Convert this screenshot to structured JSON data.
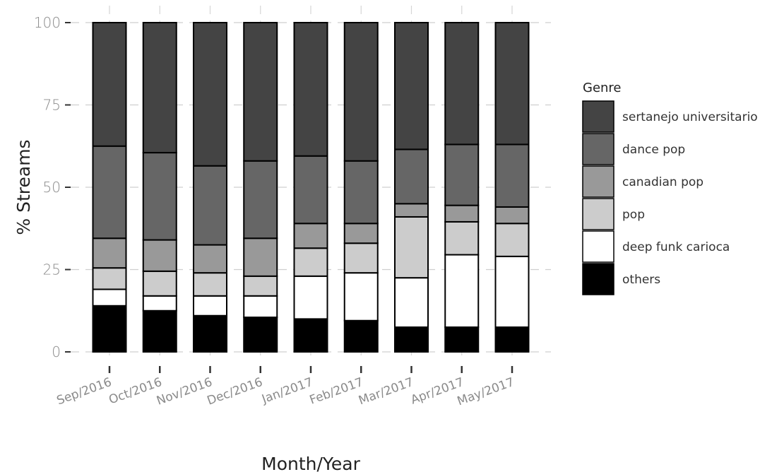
{
  "chart_data": {
    "type": "bar",
    "stacked": true,
    "categories": [
      "Sep/2016",
      "Oct/2016",
      "Nov/2016",
      "Dec/2016",
      "Jan/2017",
      "Feb/2017",
      "Mar/2017",
      "Apr/2017",
      "May/2017"
    ],
    "xlabel": "Month/Year",
    "ylabel": "% Streams",
    "ylim": [
      0,
      100
    ],
    "yticks": [
      0,
      25,
      50,
      75,
      100
    ],
    "grid": true,
    "legend_title": "Genre",
    "legend_position": "right",
    "series": [
      {
        "name": "others",
        "color": "#000000",
        "values": [
          14,
          12.5,
          11,
          10.5,
          10,
          9.5,
          7.5,
          7.5,
          7.5
        ]
      },
      {
        "name": "deep funk carioca",
        "color": "#ffffff",
        "values": [
          5,
          4.5,
          6,
          6.5,
          13,
          14.5,
          15,
          22,
          21.5
        ]
      },
      {
        "name": "pop",
        "color": "#cccccc",
        "values": [
          6.5,
          7.5,
          7,
          6,
          8.5,
          9,
          18.5,
          10,
          10
        ]
      },
      {
        "name": "canadian pop",
        "color": "#999999",
        "values": [
          9,
          9.5,
          8.5,
          11.5,
          7.5,
          6,
          4,
          5,
          5
        ]
      },
      {
        "name": "dance pop",
        "color": "#666666",
        "values": [
          28,
          26.5,
          24,
          23.5,
          20.5,
          19,
          16.5,
          18.5,
          19
        ]
      },
      {
        "name": "sertanejo universitario",
        "color": "#444444",
        "values": [
          37.5,
          39.5,
          43.5,
          42,
          40.5,
          42,
          38.5,
          37,
          37
        ]
      }
    ],
    "legend_order": [
      "sertanejo universitario",
      "dance pop",
      "canadian pop",
      "pop",
      "deep funk carioca",
      "others"
    ]
  }
}
